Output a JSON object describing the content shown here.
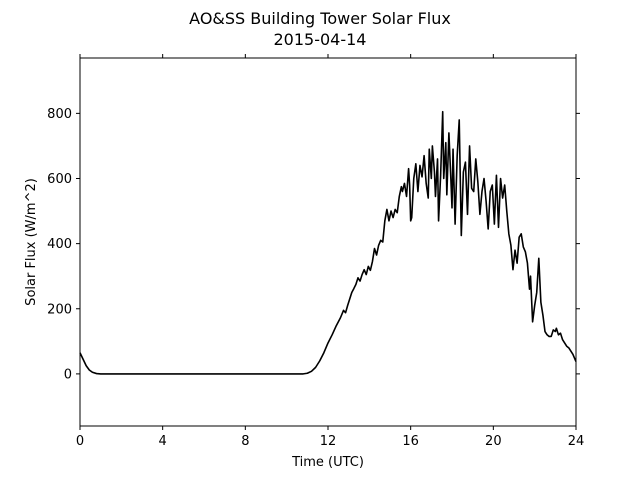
{
  "chart_data": {
    "type": "line",
    "title": "AO&SS Building Tower Solar Flux",
    "subtitle": "2015-04-14",
    "xlabel": "Time (UTC)",
    "ylabel": "Solar Flux (W/m^2)",
    "xlim": [
      0,
      24
    ],
    "ylim": [
      -160,
      970
    ],
    "x_ticks": [
      0,
      4,
      8,
      12,
      16,
      20,
      24
    ],
    "y_ticks": [
      0,
      200,
      400,
      600,
      800
    ],
    "grid": false,
    "legend": "none",
    "series": [
      {
        "color": "#000000",
        "points": [
          [
            0.0,
            65
          ],
          [
            0.15,
            45
          ],
          [
            0.3,
            25
          ],
          [
            0.45,
            12
          ],
          [
            0.6,
            5
          ],
          [
            0.8,
            1
          ],
          [
            1.0,
            0
          ],
          [
            2.0,
            0
          ],
          [
            4.0,
            0
          ],
          [
            6.0,
            0
          ],
          [
            8.0,
            0
          ],
          [
            10.0,
            0
          ],
          [
            10.8,
            0
          ],
          [
            11.0,
            2
          ],
          [
            11.2,
            8
          ],
          [
            11.4,
            20
          ],
          [
            11.6,
            40
          ],
          [
            11.8,
            65
          ],
          [
            12.0,
            95
          ],
          [
            12.2,
            120
          ],
          [
            12.4,
            148
          ],
          [
            12.6,
            172
          ],
          [
            12.75,
            195
          ],
          [
            12.85,
            188
          ],
          [
            12.95,
            210
          ],
          [
            13.05,
            230
          ],
          [
            13.15,
            250
          ],
          [
            13.25,
            262
          ],
          [
            13.35,
            275
          ],
          [
            13.45,
            295
          ],
          [
            13.55,
            285
          ],
          [
            13.65,
            305
          ],
          [
            13.75,
            320
          ],
          [
            13.85,
            305
          ],
          [
            13.95,
            330
          ],
          [
            14.05,
            318
          ],
          [
            14.15,
            345
          ],
          [
            14.25,
            385
          ],
          [
            14.35,
            365
          ],
          [
            14.45,
            395
          ],
          [
            14.55,
            410
          ],
          [
            14.65,
            405
          ],
          [
            14.75,
            470
          ],
          [
            14.85,
            505
          ],
          [
            14.95,
            470
          ],
          [
            15.05,
            500
          ],
          [
            15.15,
            480
          ],
          [
            15.25,
            505
          ],
          [
            15.35,
            495
          ],
          [
            15.45,
            545
          ],
          [
            15.55,
            575
          ],
          [
            15.6,
            560
          ],
          [
            15.7,
            585
          ],
          [
            15.8,
            545
          ],
          [
            15.9,
            630
          ],
          [
            15.95,
            580
          ],
          [
            16.0,
            470
          ],
          [
            16.05,
            480
          ],
          [
            16.15,
            600
          ],
          [
            16.25,
            645
          ],
          [
            16.35,
            560
          ],
          [
            16.45,
            640
          ],
          [
            16.55,
            605
          ],
          [
            16.65,
            670
          ],
          [
            16.75,
            585
          ],
          [
            16.85,
            540
          ],
          [
            16.9,
            690
          ],
          [
            17.0,
            600
          ],
          [
            17.05,
            700
          ],
          [
            17.15,
            620
          ],
          [
            17.2,
            545
          ],
          [
            17.3,
            660
          ],
          [
            17.35,
            470
          ],
          [
            17.45,
            610
          ],
          [
            17.55,
            805
          ],
          [
            17.6,
            600
          ],
          [
            17.7,
            710
          ],
          [
            17.75,
            550
          ],
          [
            17.85,
            740
          ],
          [
            17.95,
            590
          ],
          [
            18.0,
            510
          ],
          [
            18.05,
            690
          ],
          [
            18.15,
            460
          ],
          [
            18.25,
            670
          ],
          [
            18.35,
            780
          ],
          [
            18.45,
            425
          ],
          [
            18.55,
            620
          ],
          [
            18.65,
            650
          ],
          [
            18.75,
            490
          ],
          [
            18.85,
            700
          ],
          [
            18.95,
            570
          ],
          [
            19.05,
            560
          ],
          [
            19.15,
            660
          ],
          [
            19.25,
            590
          ],
          [
            19.35,
            490
          ],
          [
            19.45,
            560
          ],
          [
            19.55,
            600
          ],
          [
            19.65,
            530
          ],
          [
            19.75,
            445
          ],
          [
            19.85,
            560
          ],
          [
            19.95,
            580
          ],
          [
            20.05,
            460
          ],
          [
            20.15,
            610
          ],
          [
            20.25,
            450
          ],
          [
            20.35,
            600
          ],
          [
            20.45,
            540
          ],
          [
            20.55,
            580
          ],
          [
            20.65,
            500
          ],
          [
            20.75,
            430
          ],
          [
            20.85,
            395
          ],
          [
            20.95,
            320
          ],
          [
            21.05,
            380
          ],
          [
            21.15,
            340
          ],
          [
            21.25,
            420
          ],
          [
            21.35,
            430
          ],
          [
            21.45,
            390
          ],
          [
            21.55,
            375
          ],
          [
            21.65,
            340
          ],
          [
            21.75,
            260
          ],
          [
            21.8,
            300
          ],
          [
            21.9,
            160
          ],
          [
            22.0,
            210
          ],
          [
            22.1,
            250
          ],
          [
            22.2,
            355
          ],
          [
            22.3,
            220
          ],
          [
            22.4,
            180
          ],
          [
            22.5,
            130
          ],
          [
            22.6,
            120
          ],
          [
            22.7,
            115
          ],
          [
            22.8,
            115
          ],
          [
            22.9,
            135
          ],
          [
            23.0,
            130
          ],
          [
            23.05,
            140
          ],
          [
            23.15,
            120
          ],
          [
            23.25,
            125
          ],
          [
            23.35,
            105
          ],
          [
            23.45,
            95
          ],
          [
            23.55,
            85
          ],
          [
            23.65,
            80
          ],
          [
            23.75,
            70
          ],
          [
            23.85,
            60
          ],
          [
            23.95,
            45
          ],
          [
            24.0,
            38
          ]
        ]
      }
    ]
  }
}
